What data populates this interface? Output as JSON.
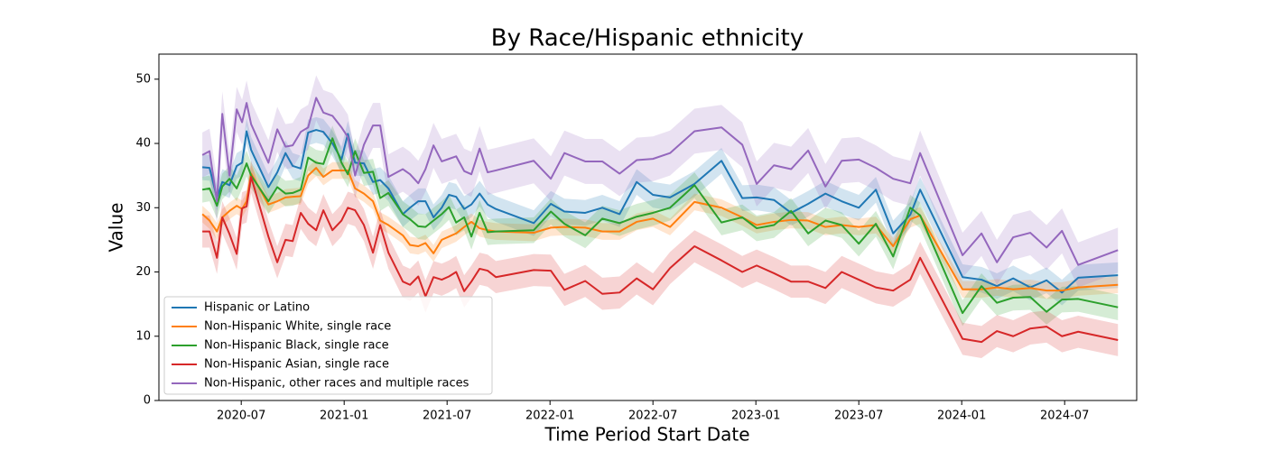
{
  "chart_data": {
    "type": "line",
    "title": "By Race/Hispanic ethnicity",
    "xlabel": "Time Period Start Date",
    "ylabel": "Value",
    "x": [
      2020.311,
      2020.346,
      2020.382,
      2020.408,
      2020.443,
      2020.478,
      2020.504,
      2020.526,
      2020.548,
      2020.632,
      2020.675,
      2020.715,
      2020.75,
      2020.789,
      2020.825,
      2020.864,
      2020.899,
      2020.943,
      2020.987,
      2021.018,
      2021.053,
      2021.096,
      2021.14,
      2021.175,
      2021.215,
      2021.285,
      2021.32,
      2021.36,
      2021.395,
      2021.434,
      2021.474,
      2021.509,
      2021.544,
      2021.583,
      2021.618,
      2021.658,
      2021.697,
      2021.737,
      2021.921,
      2022.004,
      2022.07,
      2022.171,
      2022.254,
      2022.338,
      2022.421,
      2022.5,
      2022.583,
      2022.702,
      2022.833,
      2022.934,
      2023.004,
      2023.088,
      2023.171,
      2023.254,
      2023.338,
      2023.417,
      2023.5,
      2023.583,
      2023.667,
      2023.75,
      2023.798,
      2024.004,
      2024.096,
      2024.171,
      2024.25,
      2024.333,
      2024.412,
      2024.487,
      2024.566,
      2024.759
    ],
    "series": [
      {
        "name": "Hispanic or Latino",
        "color": "#1f77b4",
        "ci": 2,
        "values": [
          36.3,
          36.2,
          31.5,
          34,
          33.5,
          36.5,
          37,
          41.9,
          39,
          33.2,
          35.5,
          38.5,
          36.5,
          36.1,
          41.7,
          42.1,
          41.8,
          40,
          37.5,
          41.5,
          37,
          36.9,
          34,
          34.3,
          33,
          29,
          30,
          31,
          31,
          28.5,
          30,
          32,
          31.7,
          29.8,
          30.5,
          32.2,
          30.5,
          29.8,
          27.6,
          30.6,
          29.4,
          29.2,
          30,
          29,
          34,
          32,
          31.6,
          33.7,
          37.3,
          31.5,
          31.6,
          31.2,
          29.2,
          30.6,
          32.2,
          31,
          30,
          32.8,
          26,
          28.9,
          32.8,
          19.2,
          18.8,
          17.8,
          19,
          17.6,
          18.7,
          16.8,
          19.1,
          19.5
        ]
      },
      {
        "name": "Non-Hispanic White, single race",
        "color": "#ff7f0e",
        "ci": 1.3,
        "values": [
          29,
          28,
          26.3,
          28.5,
          29.5,
          30.3,
          29.8,
          31,
          35.3,
          30.5,
          31,
          31.6,
          31.7,
          31.8,
          35,
          36.2,
          34.8,
          35.8,
          35.8,
          35.8,
          33,
          32.2,
          31,
          28,
          27.3,
          25.7,
          24.2,
          24,
          24.5,
          22.9,
          25,
          25.5,
          26,
          27,
          27.8,
          26.8,
          26.5,
          26.3,
          26.1,
          26.9,
          27,
          26.9,
          26.3,
          26.3,
          27.8,
          28.3,
          27,
          30.9,
          30,
          28.5,
          27.3,
          27.8,
          28.1,
          28,
          27,
          27.3,
          27,
          27.3,
          24,
          28.2,
          28.8,
          17.3,
          17.3,
          17.6,
          17.3,
          17.5,
          17.1,
          17.1,
          17.6,
          18
        ]
      },
      {
        "name": "Non-Hispanic Black, single race",
        "color": "#2ca02c",
        "ci": 2,
        "values": [
          32.8,
          33,
          30.3,
          33.3,
          34.5,
          33,
          35,
          36.9,
          35,
          31,
          33.2,
          32.2,
          32.3,
          32.8,
          37.8,
          37,
          36.8,
          40.8,
          37,
          35.2,
          38.8,
          35.4,
          35.6,
          31.5,
          32.3,
          29,
          28.2,
          27.1,
          27,
          28,
          29,
          30.1,
          27.7,
          28.5,
          25.5,
          29.2,
          26.2,
          26.3,
          26.5,
          29.4,
          27.5,
          25.7,
          28.3,
          27.6,
          28.6,
          29.2,
          30,
          33.5,
          27.7,
          28.5,
          26.8,
          27.3,
          29.5,
          26,
          28,
          27.3,
          24.4,
          27.5,
          22.4,
          30,
          28.8,
          13.6,
          17.8,
          15.2,
          16,
          16.1,
          13.8,
          15.7,
          15.8,
          14.5
        ]
      },
      {
        "name": "Non-Hispanic Asian, single race",
        "color": "#d62728",
        "ci": 2.5,
        "values": [
          26.3,
          26.3,
          22.2,
          28.5,
          25.9,
          22.8,
          29.9,
          30.2,
          34.8,
          25.5,
          21.5,
          25,
          24.8,
          29.2,
          27.5,
          26.5,
          29.6,
          26.5,
          28,
          30,
          29.6,
          27.3,
          23,
          27.3,
          23,
          18.5,
          18,
          19.3,
          16.2,
          19.2,
          18.8,
          19.3,
          20,
          17,
          18.5,
          20.5,
          20.2,
          19.2,
          20.3,
          20.2,
          17.2,
          18.6,
          16.6,
          16.8,
          19,
          17.3,
          20.6,
          24,
          21.8,
          20,
          21,
          19.8,
          18.5,
          18.5,
          17.5,
          20,
          18.8,
          17.6,
          17.1,
          18.8,
          22.2,
          9.6,
          9.1,
          10.8,
          10,
          11.2,
          11.5,
          10,
          10.7,
          9.4
        ]
      },
      {
        "name": "Non-Hispanic, other races and multiple races",
        "color": "#9467bd",
        "ci": 3.5,
        "values": [
          38.2,
          38.8,
          31,
          44.6,
          35,
          45.3,
          43.3,
          46.3,
          43,
          37,
          42.2,
          39.5,
          39.7,
          41.8,
          42.5,
          47.1,
          44.8,
          44.3,
          42.5,
          41,
          35,
          39.8,
          42.8,
          42.8,
          34.8,
          36,
          35.2,
          33.8,
          36,
          39.7,
          37.2,
          37.6,
          38,
          35.7,
          35.2,
          39.2,
          35.5,
          35.8,
          37.3,
          34.5,
          38.5,
          37.2,
          37.2,
          35.3,
          37.4,
          37.6,
          38.5,
          41.9,
          42.5,
          39.8,
          33.7,
          36.6,
          36,
          38.9,
          33.3,
          37.3,
          37.5,
          36.2,
          34.5,
          33.8,
          38.5,
          22.6,
          26,
          21.5,
          25.4,
          26.1,
          23.8,
          26.4,
          21.1,
          23.4
        ]
      }
    ],
    "xlim": [
      2020.1,
      2024.85
    ],
    "xticks": [
      {
        "value": 2020.5,
        "label": "2020-07"
      },
      {
        "value": 2021.0,
        "label": "2021-01"
      },
      {
        "value": 2021.5,
        "label": "2021-07"
      },
      {
        "value": 2022.0,
        "label": "2022-01"
      },
      {
        "value": 2022.5,
        "label": "2022-07"
      },
      {
        "value": 2023.0,
        "label": "2023-01"
      },
      {
        "value": 2023.5,
        "label": "2023-07"
      },
      {
        "value": 2024.0,
        "label": "2024-01"
      },
      {
        "value": 2024.5,
        "label": "2024-07"
      }
    ],
    "ylim": [
      0,
      53.9
    ],
    "yticks": [
      0,
      10,
      20,
      30,
      40,
      50
    ],
    "grid": false,
    "legend": "lower left"
  }
}
